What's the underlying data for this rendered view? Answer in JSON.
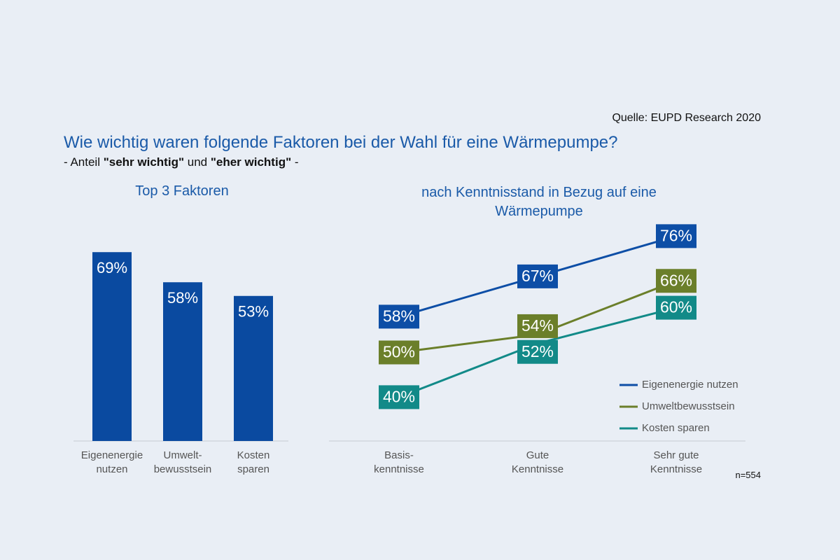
{
  "source": "Quelle: EUPD Research 2020",
  "title": "Wie wichtig waren folgende Faktoren bei der Wahl für eine Wärmepumpe?",
  "subtitle": [
    "- Anteil ",
    "\"sehr wichtig\"",
    " und ",
    "\"eher wichtig\"",
    " -"
  ],
  "sample_note": "n=554",
  "chart_data": [
    {
      "type": "bar",
      "title": "Top 3 Faktoren",
      "categories": [
        [
          "Eigenenergie",
          "nutzen"
        ],
        [
          "Umwelt-",
          "bewusstsein"
        ],
        [
          "Kosten",
          "sparen"
        ]
      ],
      "values": [
        69,
        58,
        53
      ],
      "value_labels": [
        "69%",
        "58%",
        "53%"
      ],
      "color": "#0a4aa0"
    },
    {
      "type": "line",
      "title": "nach Kenntnisstand in Bezug auf eine Wärmepumpe",
      "categories": [
        [
          "Basis-",
          "kenntnisse"
        ],
        [
          "Gute",
          "Kenntnisse"
        ],
        [
          "Sehr gute",
          "Kenntnisse"
        ]
      ],
      "series": [
        {
          "name": "Eigenenergie nutzen",
          "color": "#0d4ea6",
          "values": [
            58,
            67,
            76
          ],
          "value_labels": [
            "58%",
            "67%",
            "76%"
          ]
        },
        {
          "name": "Umweltbewusstsein",
          "color": "#6b7f2a",
          "values": [
            50,
            54,
            66
          ],
          "value_labels": [
            "50%",
            "54%",
            "66%"
          ]
        },
        {
          "name": "Kosten sparen",
          "color": "#128a88",
          "values": [
            40,
            52,
            60
          ],
          "value_labels": [
            "40%",
            "52%",
            "60%"
          ]
        }
      ],
      "legend": "lower right"
    }
  ]
}
